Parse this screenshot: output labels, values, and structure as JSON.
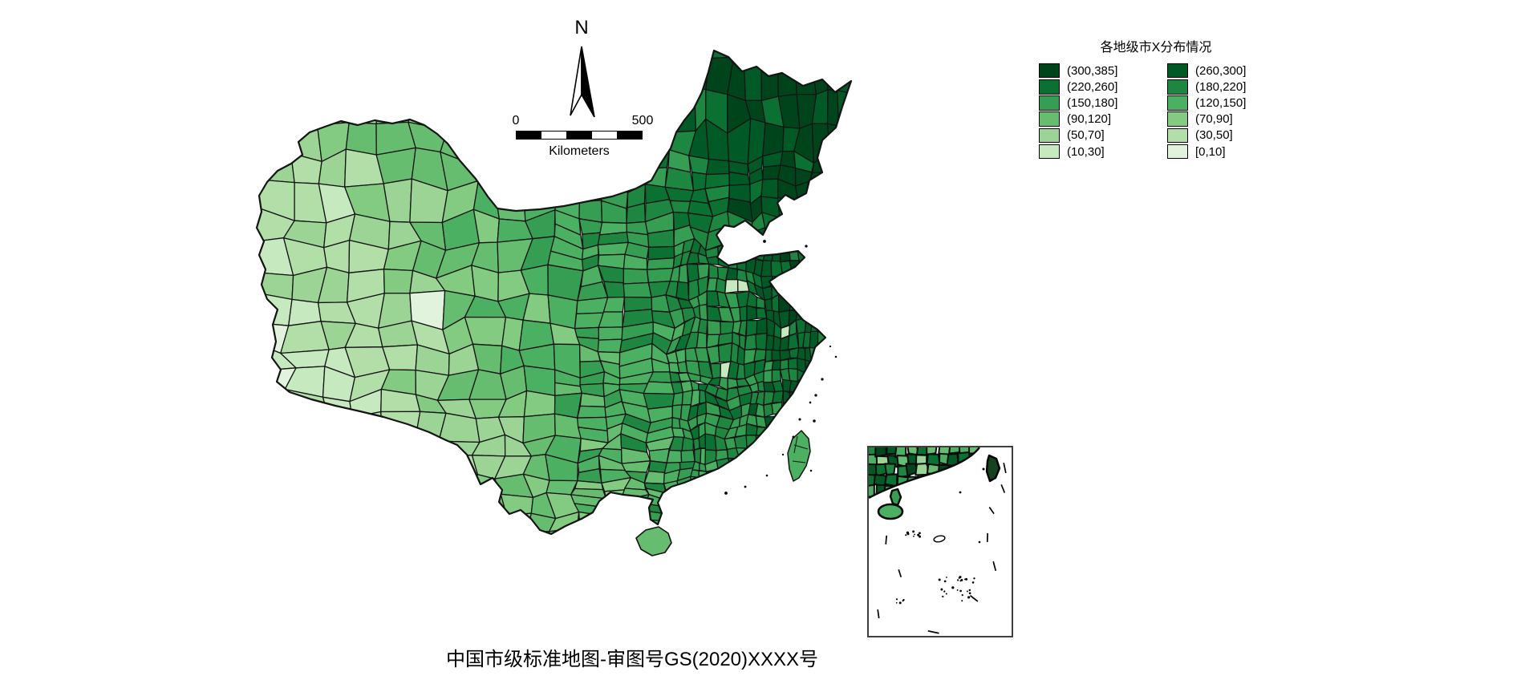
{
  "north_arrow": {
    "label": "N"
  },
  "scale_bar": {
    "zero_label": "0",
    "max_label": "500",
    "unit_label": "Kilometers"
  },
  "legend": {
    "title": "各地级市X分布情况",
    "columns": [
      {
        "items": [
          {
            "label": "(300,385]",
            "color": "#00441b"
          },
          {
            "label": "(220,260]",
            "color": "#0b7132"
          },
          {
            "label": "(150,180]",
            "color": "#359e53"
          },
          {
            "label": "(90,120]",
            "color": "#66bd6f"
          },
          {
            "label": "(50,70]",
            "color": "#9bd494"
          },
          {
            "label": "(10,30]",
            "color": "#c7e9c0"
          }
        ]
      },
      {
        "items": [
          {
            "label": "(260,300]",
            "color": "#015a26"
          },
          {
            "label": "(180,220]",
            "color": "#1d8640"
          },
          {
            "label": "(120,150]",
            "color": "#4bb062"
          },
          {
            "label": "(70,90]",
            "color": "#82cb80"
          },
          {
            "label": "(30,50]",
            "color": "#b2dfa8"
          },
          {
            "label": "[0,10]",
            "color": "#e1f3dc"
          }
        ]
      }
    ]
  },
  "caption": "中国市级标准地图-审图号GS(2020)XXXX号",
  "map": {
    "palette": [
      "#00441b",
      "#015a26",
      "#0b7132",
      "#1d8640",
      "#359e53",
      "#4bb062",
      "#66bd6f",
      "#82cb80",
      "#9bd494",
      "#b2dfa8",
      "#c7e9c0",
      "#e1f3dc"
    ],
    "boundary_color": "#141414",
    "inset_border_color": "#3f3f3f"
  }
}
